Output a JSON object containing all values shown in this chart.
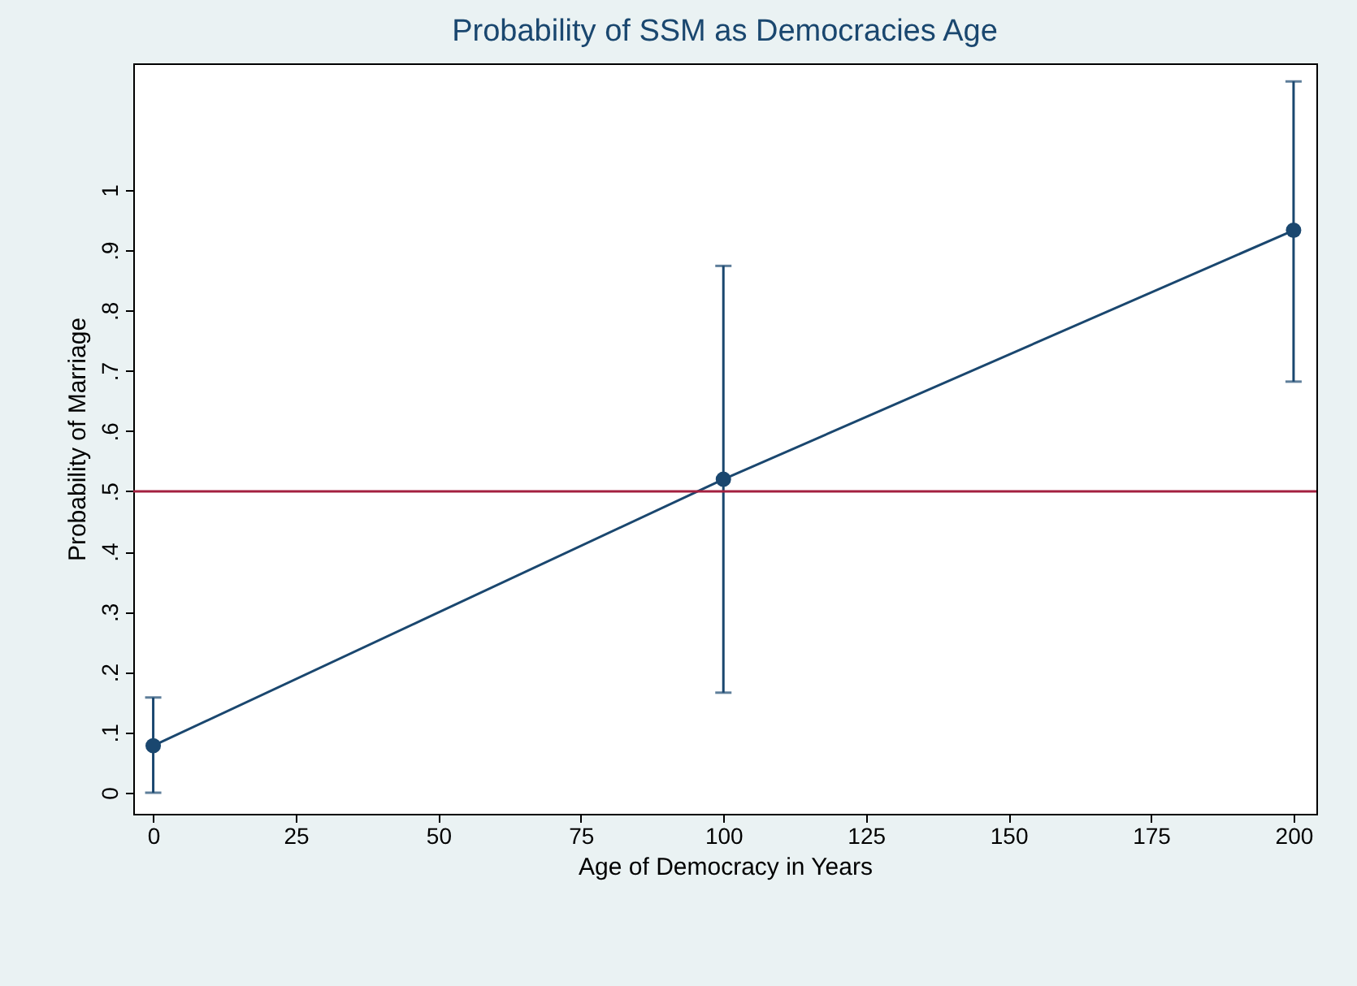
{
  "chart_data": {
    "type": "line",
    "title": "Probability of SSM as Democracies Age",
    "xlabel": "Age of Democracy in Years",
    "ylabel": "Probability of Marriage",
    "x": [
      0,
      100,
      200
    ],
    "series": [
      {
        "color": "#1a476f",
        "values": [
          0.078,
          0.52,
          0.933
        ],
        "errors": [
          [
            0.0,
            0.158
          ],
          [
            0.166,
            0.874
          ],
          [
            0.682,
            1.18
          ]
        ]
      }
    ],
    "xlim": [
      -3.5,
      204
    ],
    "ylim": [
      -0.035,
      1.21
    ],
    "xticks": [
      0,
      25,
      50,
      75,
      100,
      125,
      150,
      175,
      200
    ],
    "yticks": [
      {
        "value": 0,
        "label": "0"
      },
      {
        "value": 0.1,
        "label": ".1"
      },
      {
        "value": 0.2,
        "label": ".2"
      },
      {
        "value": 0.3,
        "label": ".3"
      },
      {
        "value": 0.4,
        "label": ".4"
      },
      {
        "value": 0.5,
        "label": ".5"
      },
      {
        "value": 0.6,
        "label": ".6"
      },
      {
        "value": 0.7,
        "label": ".7"
      },
      {
        "value": 0.8,
        "label": ".8"
      },
      {
        "value": 0.9,
        "label": ".9"
      },
      {
        "value": 1,
        "label": "1"
      }
    ],
    "ref_lines": [
      {
        "axis": "y",
        "value": 0.5,
        "color": "#a3203f"
      }
    ],
    "marker": "circle",
    "grid": false
  }
}
